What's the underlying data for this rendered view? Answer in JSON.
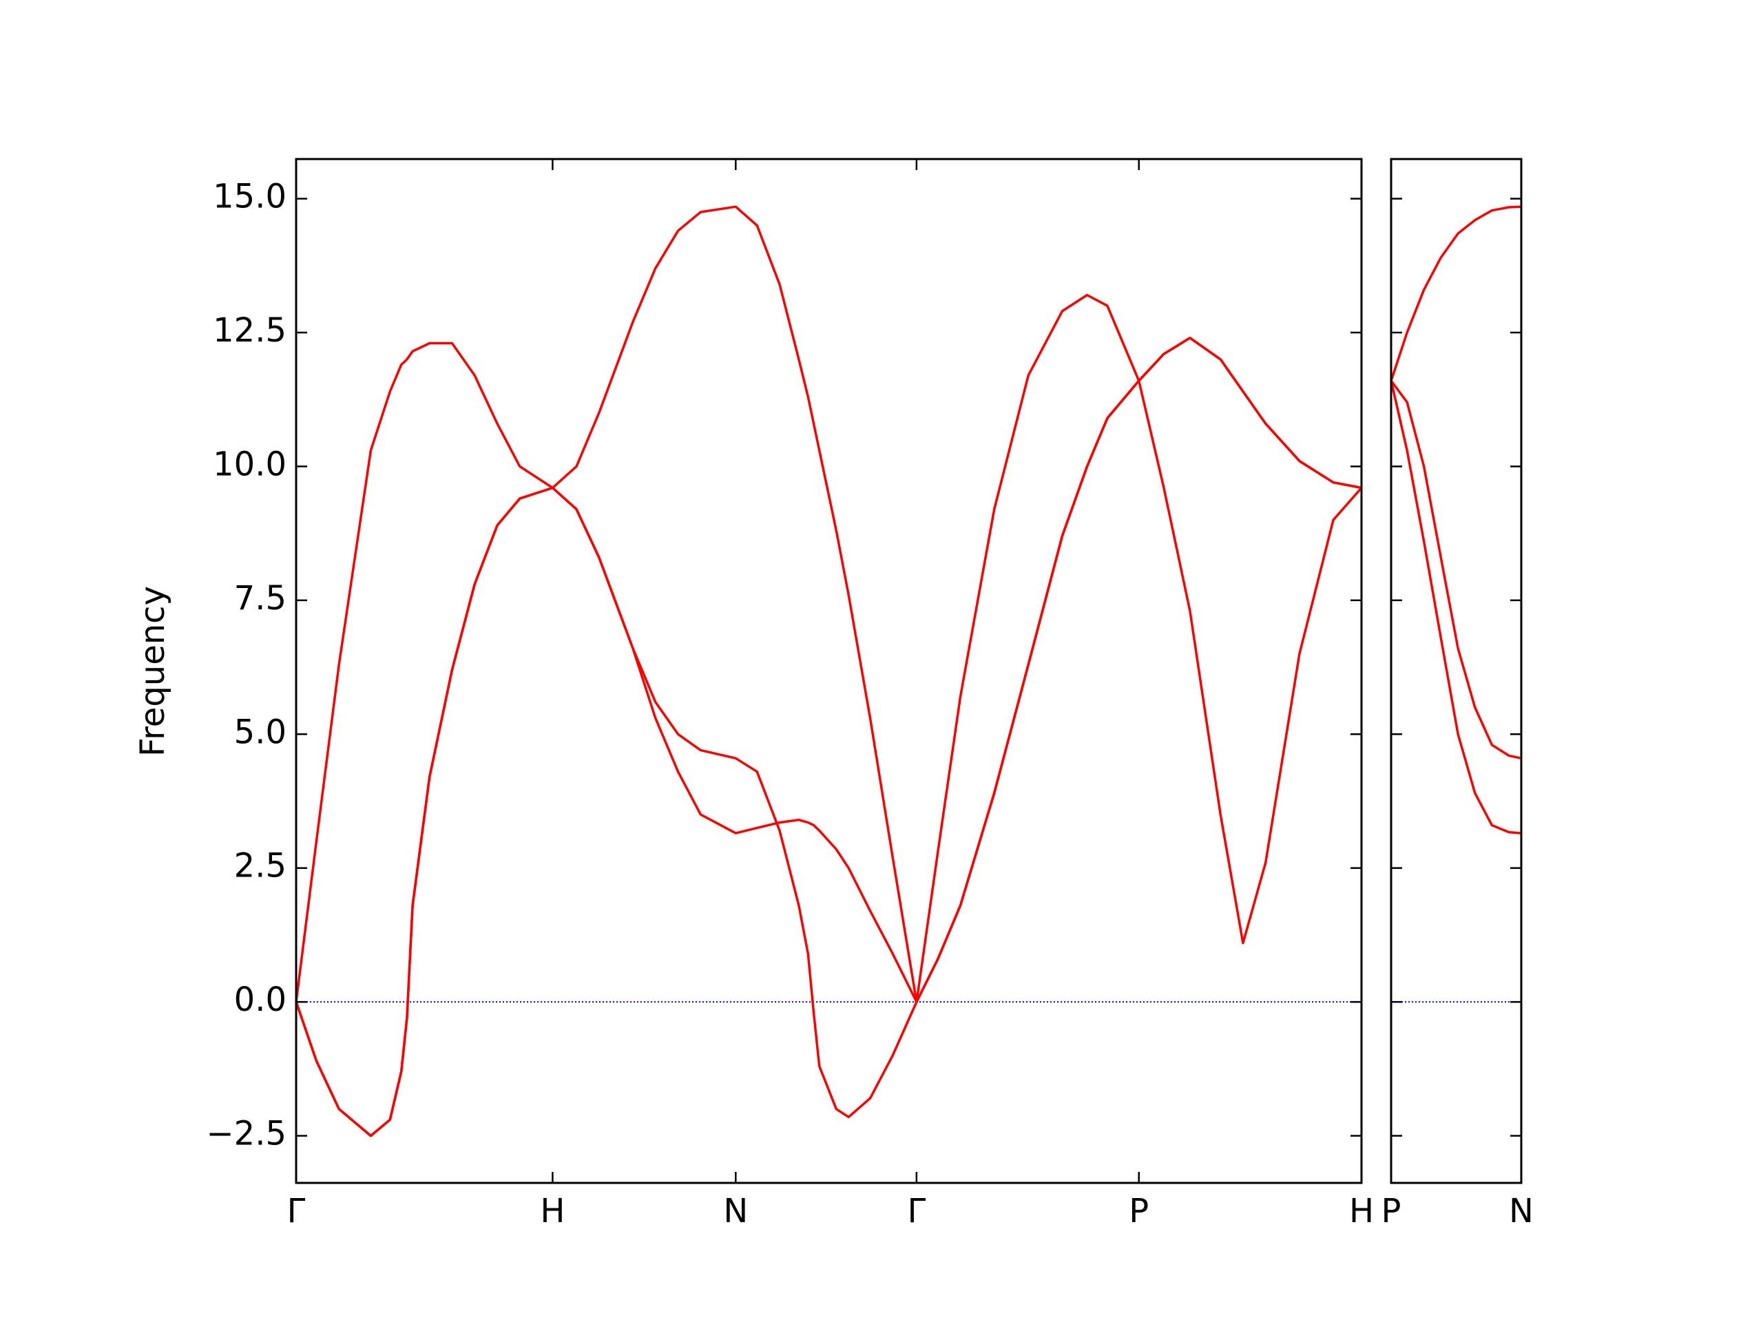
{
  "chart_data": [
    {
      "type": "line",
      "ylabel": "Frequency",
      "x": [
        0,
        0.079,
        0.167,
        0.291,
        0.366,
        0.41,
        0.432,
        0.454,
        0.52,
        0.608,
        0.696,
        0.784,
        0.872,
        1.0,
        1.093,
        1.181,
        1.313,
        1.401,
        1.489,
        1.577,
        1.714,
        1.797,
        1.885,
        1.96,
        1.996,
        2.018,
        2.04,
        2.106,
        2.154,
        2.238,
        2.326,
        2.419,
        2.502,
        2.59,
        2.722,
        2.855,
        2.987,
        3.084,
        3.163,
        3.286,
        3.383,
        3.485,
        3.604,
        3.692,
        3.78,
        3.912,
        4.044,
        4.154
      ],
      "series": [
        {
          "color": "#ff0000",
          "values": [
            0,
            -1.1,
            -2.0,
            -2.5,
            -2.2,
            -1.3,
            -0.3,
            1.8,
            4.2,
            6.2,
            7.8,
            8.9,
            9.4,
            9.6,
            9.2,
            8.3,
            6.6,
            5.3,
            4.3,
            3.5,
            3.15,
            3.25,
            3.35,
            3.4,
            3.35,
            3.3,
            3.2,
            2.85,
            2.5,
            1.7,
            0.9,
            0,
            0.8,
            1.8,
            3.9,
            6.3,
            8.7,
            10.0,
            10.9,
            11.6,
            12.1,
            12.4,
            12.0,
            11.4,
            10.8,
            10.1,
            9.7,
            9.6
          ]
        },
        {
          "color": "#ff0000",
          "values": [
            0,
            -1.1,
            -2.0,
            -2.5,
            -2.2,
            -1.3,
            -0.3,
            1.8,
            4.2,
            6.2,
            7.8,
            8.9,
            9.4,
            9.6,
            9.2,
            8.3,
            6.6,
            5.6,
            5.0,
            4.7,
            4.55,
            4.3,
            3.2,
            1.8,
            0.9,
            -0.2,
            -1.2,
            -2.0,
            -2.15,
            -1.8,
            -1.0,
            0,
            0.8,
            1.8,
            3.9,
            6.3,
            8.7,
            10.0,
            10.9,
            11.6,
            12.1,
            12.4,
            12.0,
            11.4,
            10.8,
            10.1,
            9.7,
            9.6
          ]
        },
        {
          "color": "#ff0000",
          "values": [
            0,
            3.0,
            6.3,
            10.3,
            11.4,
            11.9,
            12.0,
            12.15,
            12.3,
            12.3,
            11.7,
            10.8,
            10.0,
            9.6,
            10.0,
            11.0,
            12.7,
            13.7,
            14.4,
            14.75,
            14.85,
            14.5,
            13.4,
            12.0,
            11.3,
            10.8,
            10.3,
            8.8,
            7.6,
            5.3,
            2.7,
            0,
            2.8,
            5.7,
            9.2,
            11.7,
            12.9,
            13.2,
            13.0,
            11.6,
            9.6,
            7.3,
            3.5,
            1.1,
            2.6,
            6.5,
            9.0,
            9.6
          ]
        }
      ],
      "xlim": [
        0,
        4.154
      ],
      "xticks": [
        {
          "value": 0,
          "label": "Γ"
        },
        {
          "value": 1.0,
          "label": "H"
        },
        {
          "value": 1.714,
          "label": "N"
        },
        {
          "value": 2.419,
          "label": "Γ"
        },
        {
          "value": 3.286,
          "label": "P"
        },
        {
          "value": 4.154,
          "label": "H"
        }
      ],
      "ylim": [
        -3.38,
        15.74
      ],
      "yticks": [
        {
          "value": -2.5,
          "label": "−2.5"
        },
        {
          "value": 0,
          "label": "0.0"
        },
        {
          "value": 2.5,
          "label": "2.5"
        },
        {
          "value": 5,
          "label": "5.0"
        },
        {
          "value": 7.5,
          "label": "7.5"
        },
        {
          "value": 10,
          "label": "10.0"
        },
        {
          "value": 12.5,
          "label": "12.5"
        },
        {
          "value": 15,
          "label": "15.0"
        }
      ],
      "hline": {
        "value": 0,
        "color": "#0000ff"
      }
    },
    {
      "type": "line",
      "x": [
        0,
        0.061,
        0.126,
        0.191,
        0.257,
        0.322,
        0.387,
        0.452,
        0.5
      ],
      "series": [
        {
          "color": "#ff0000",
          "values": [
            11.6,
            12.5,
            13.3,
            13.9,
            14.35,
            14.6,
            14.78,
            14.84,
            14.85
          ]
        },
        {
          "color": "#ff0000",
          "values": [
            11.6,
            11.2,
            10.0,
            8.3,
            6.6,
            5.5,
            4.8,
            4.6,
            4.55
          ]
        },
        {
          "color": "#ff0000",
          "values": [
            11.6,
            10.3,
            8.6,
            6.8,
            5.0,
            3.9,
            3.3,
            3.17,
            3.15
          ]
        }
      ],
      "xlim": [
        0,
        0.5
      ],
      "xticks": [
        {
          "value": 0,
          "label": "P"
        },
        {
          "value": 0.5,
          "label": "N"
        }
      ],
      "ylim": [
        -3.38,
        15.74
      ],
      "yticks": [
        -2.5,
        0,
        2.5,
        5,
        7.5,
        10,
        12.5,
        15
      ],
      "hline": {
        "value": 0,
        "color": "#0000ff"
      }
    }
  ]
}
